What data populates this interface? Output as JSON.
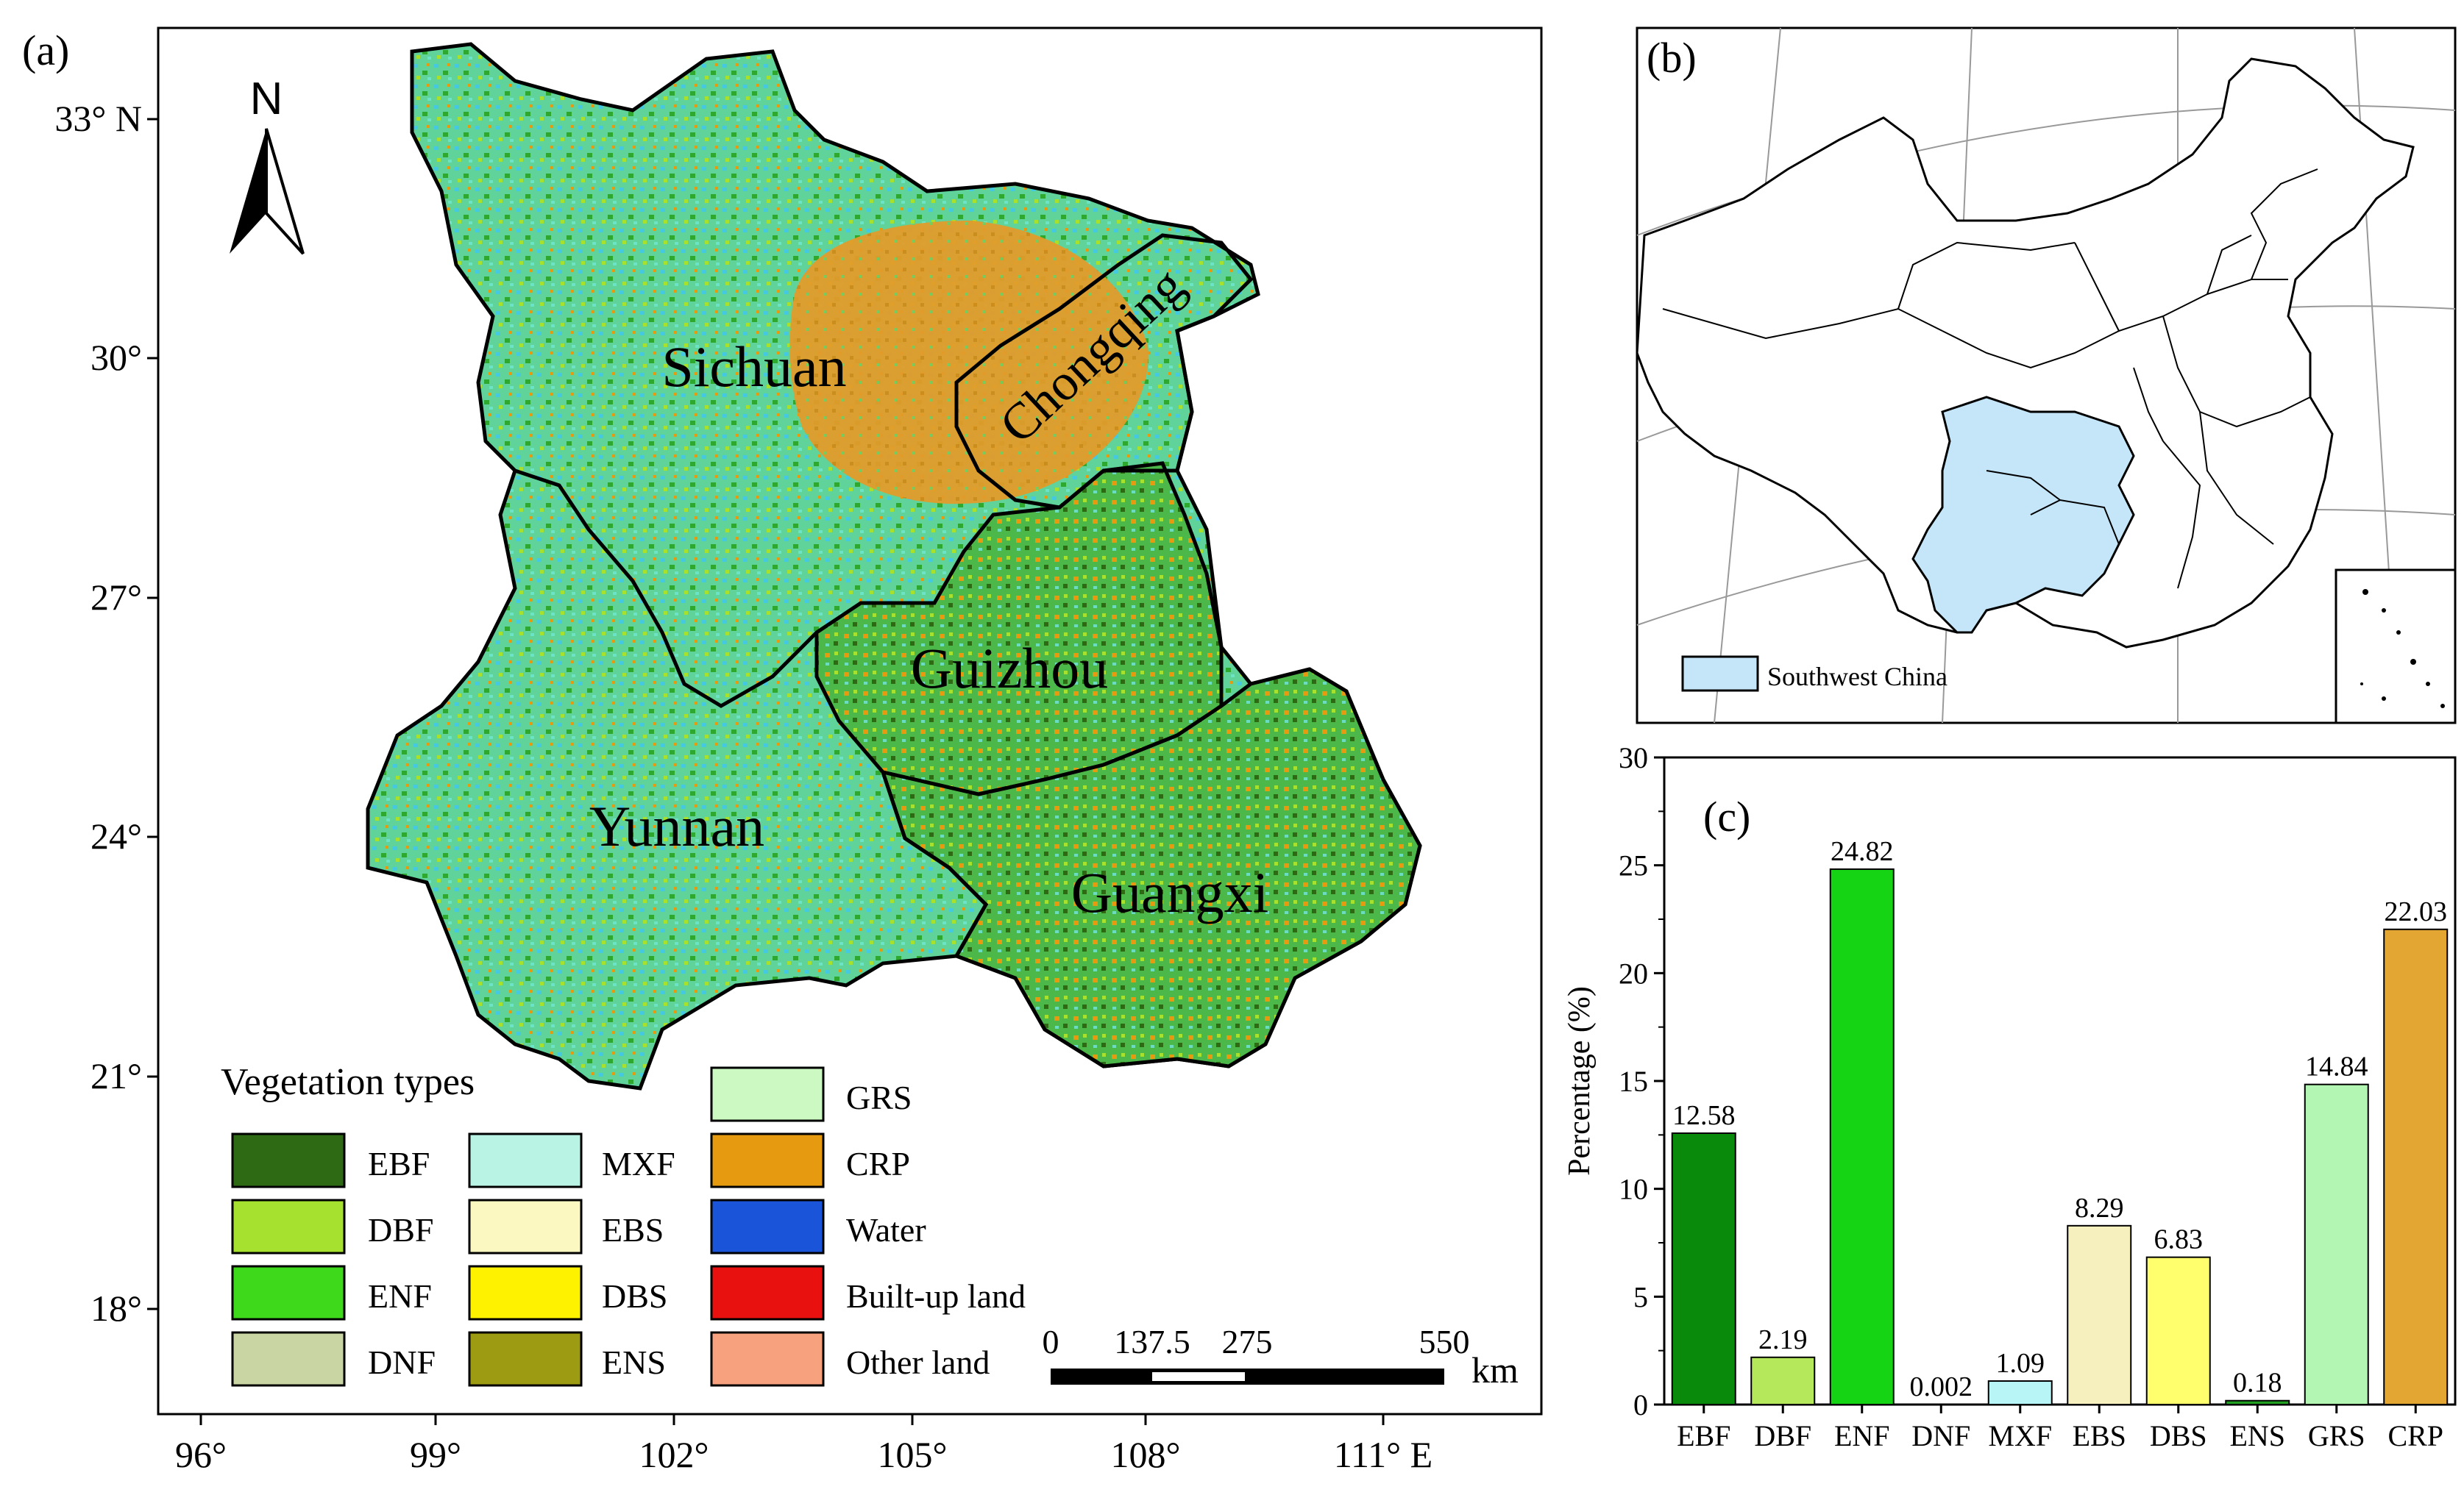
{
  "panel_a": {
    "label": "(a)",
    "north_label": "N",
    "lat_ticks": [
      "33° N",
      "30°",
      "27°",
      "24°",
      "21°",
      "18°"
    ],
    "lon_ticks": [
      "96°",
      "99°",
      "102°",
      "105°",
      "108°",
      "111° E"
    ],
    "province_labels": [
      "Sichuan",
      "Chongqing",
      "Guizhou",
      "Yunnan",
      "Guangxi"
    ],
    "legend": {
      "title": "Vegetation types",
      "items": [
        {
          "label": "EBF",
          "color": "#2d6a13"
        },
        {
          "label": "DBF",
          "color": "#a7e12f"
        },
        {
          "label": "ENF",
          "color": "#3fd91c"
        },
        {
          "label": "DNF",
          "color": "#c9d6a3"
        },
        {
          "label": "MXF",
          "color": "#b8f3e3"
        },
        {
          "label": "EBS",
          "color": "#fbf8c2"
        },
        {
          "label": "DBS",
          "color": "#fff200"
        },
        {
          "label": "ENS",
          "color": "#9c9b11"
        },
        {
          "label": "GRS",
          "color": "#ccf9c1"
        },
        {
          "label": "CRP",
          "color": "#e59a10"
        },
        {
          "label": "Water",
          "color": "#1a54d8"
        },
        {
          "label": "Built-up land",
          "color": "#e8110f"
        },
        {
          "label": "Other land",
          "color": "#f7a17e"
        }
      ]
    },
    "scale_bar": {
      "ticks": [
        "0",
        "137.5",
        "275",
        "550"
      ],
      "unit": "km"
    }
  },
  "panel_b": {
    "label": "(b)",
    "legend_label": "Southwest China",
    "highlight_color": "#c5e6f9"
  },
  "panel_c": {
    "label": "(c)",
    "chart_data": {
      "type": "bar",
      "categories": [
        "EBF",
        "DBF",
        "ENF",
        "DNF",
        "MXF",
        "EBS",
        "DBS",
        "ENS",
        "GRS",
        "CRP"
      ],
      "values": [
        12.58,
        2.19,
        24.82,
        0.002,
        1.09,
        8.29,
        6.83,
        0.18,
        14.84,
        22.03
      ],
      "value_labels": [
        "12.58",
        "2.19",
        "24.82",
        "0.002",
        "1.09",
        "8.29",
        "6.83",
        "0.18",
        "14.84",
        "22.03"
      ],
      "colors": [
        "#0a8a0a",
        "#b5e85a",
        "#14d414",
        "#ffffff",
        "#b7f5f7",
        "#f6efbe",
        "#ffff6e",
        "#22a022",
        "#b3f5b3",
        "#e3a632"
      ],
      "ylabel": "Percentage (%)",
      "xlabel": "",
      "ylim": [
        0,
        30
      ],
      "yticks": [
        "0",
        "5",
        "10",
        "15",
        "20",
        "25",
        "30"
      ],
      "grid": false
    }
  }
}
